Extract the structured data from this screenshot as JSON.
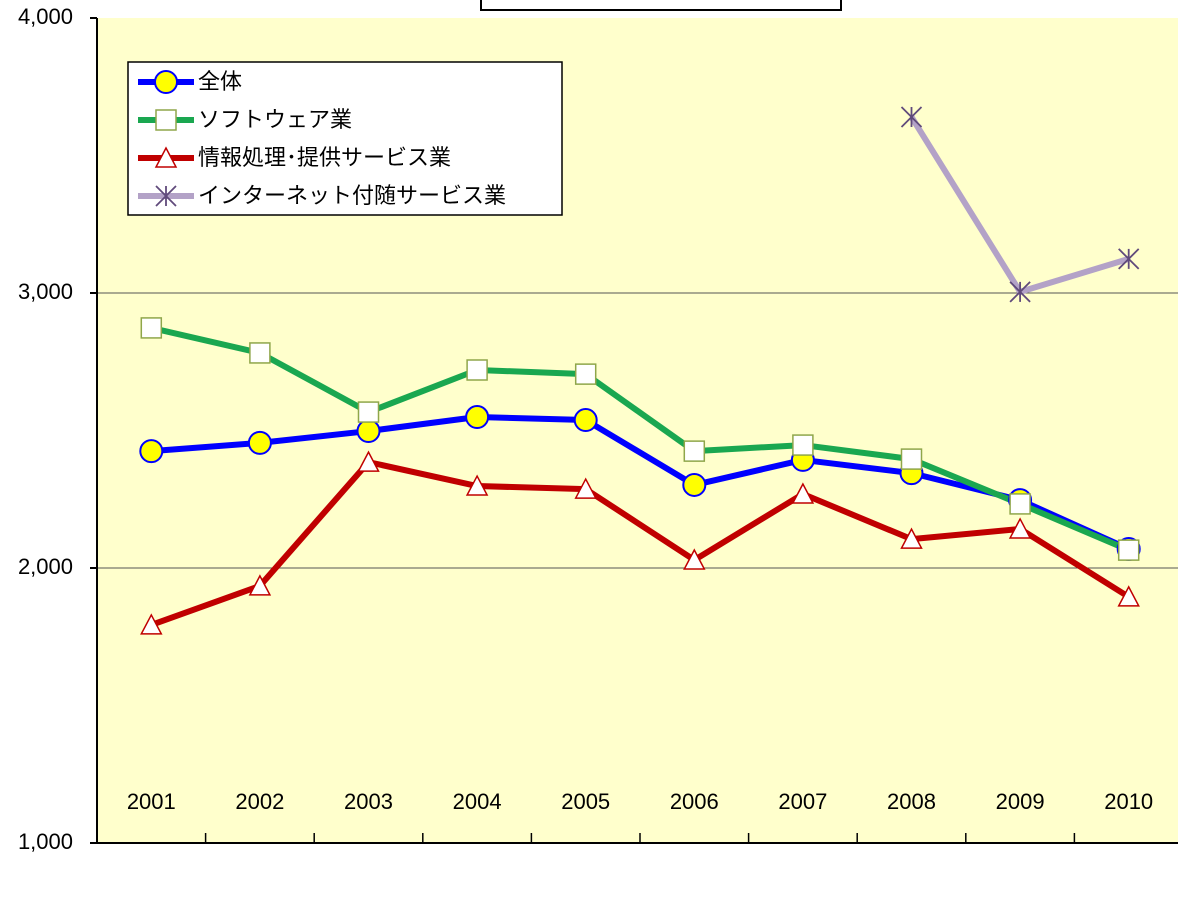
{
  "chart_data": {
    "type": "line",
    "categories": [
      "2001",
      "2002",
      "2003",
      "2004",
      "2005",
      "2006",
      "2007",
      "2008",
      "2009",
      "2010"
    ],
    "series": [
      {
        "name": "全体",
        "color": "#0000ff",
        "marker": "circle",
        "values": [
          2425,
          2455,
          2498,
          2549,
          2538,
          2302,
          2393,
          2345,
          2247,
          2069
        ]
      },
      {
        "name": "ソフトウェア業",
        "color": "#1aa750",
        "marker": "square",
        "values": [
          2873,
          2782,
          2567,
          2720,
          2705,
          2425,
          2447,
          2396,
          2233,
          2065
        ]
      },
      {
        "name": "情報処理･提供サービス業",
        "color": "#c00000",
        "marker": "triangle",
        "values": [
          1793,
          1935,
          2385,
          2298,
          2287,
          2029,
          2269,
          2105,
          2142,
          1895
        ]
      },
      {
        "name": "インターネット付随サービス業",
        "color": "#b3a2c7",
        "marker": "star",
        "values": [
          null,
          null,
          null,
          null,
          null,
          null,
          null,
          3640,
          3004,
          3124
        ]
      }
    ],
    "ylim": [
      1000,
      4000
    ],
    "yticks": [
      {
        "value": 1000,
        "label": "1,000"
      },
      {
        "value": 2000,
        "label": "2,000"
      },
      {
        "value": 3000,
        "label": "3,000"
      },
      {
        "value": 4000,
        "label": "4,000"
      }
    ],
    "grid": true
  }
}
